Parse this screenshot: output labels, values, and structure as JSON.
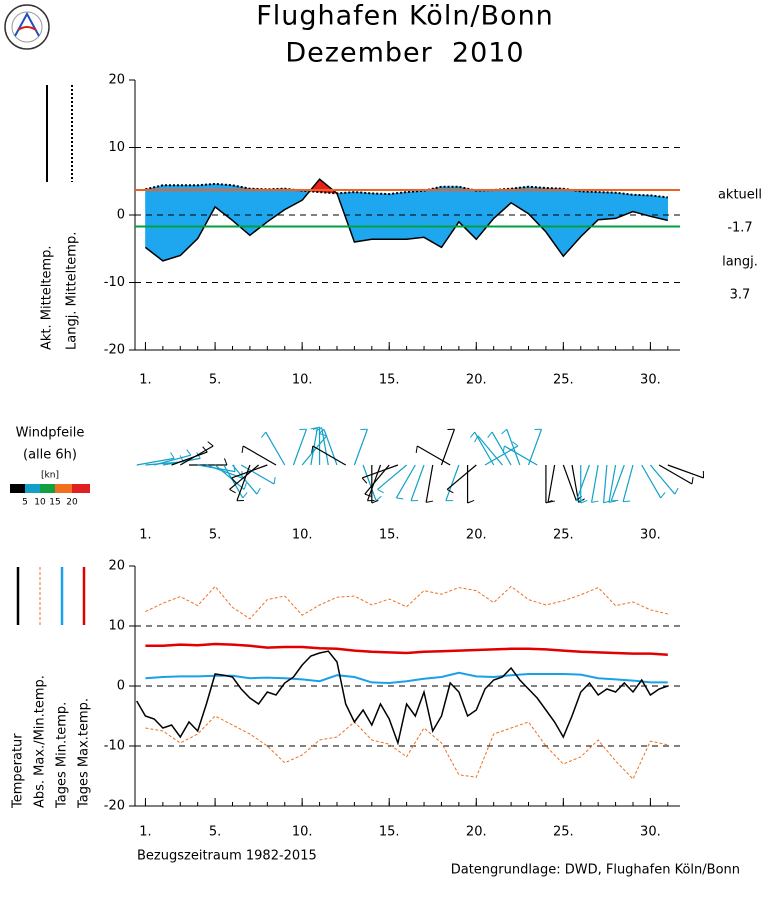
{
  "chart_data": [
    {
      "type": "line",
      "title": "Flughafen Köln/Bonn",
      "subtitle": "Dezember  2010",
      "x": [
        1,
        2,
        3,
        4,
        5,
        6,
        7,
        8,
        9,
        10,
        11,
        12,
        13,
        14,
        15,
        16,
        17,
        18,
        19,
        20,
        21,
        22,
        23,
        24,
        25,
        26,
        27,
        28,
        29,
        30,
        31
      ],
      "xlim": [
        0.4,
        31.7
      ],
      "xticks": [
        {
          "value": 1,
          "label": "1."
        },
        {
          "value": 5,
          "label": "5."
        },
        {
          "value": 10,
          "label": "10."
        },
        {
          "value": 15,
          "label": "15."
        },
        {
          "value": 20,
          "label": "20."
        },
        {
          "value": 25,
          "label": "25."
        },
        {
          "value": 30,
          "label": "30."
        }
      ],
      "ylim": [
        -20,
        20
      ],
      "yticks": [
        -20,
        -10,
        0,
        10,
        20
      ],
      "grid": "dashed",
      "series": [
        {
          "name": "Akt. Mitteltemp.",
          "color": "#000000",
          "values": [
            -4.8,
            -6.8,
            -6.0,
            -3.5,
            1.2,
            -0.8,
            -3.0,
            -1.0,
            0.8,
            2.2,
            5.3,
            3.2,
            -4.0,
            -3.6,
            -3.6,
            -3.6,
            -3.3,
            -4.8,
            -1.0,
            -3.6,
            -0.5,
            1.8,
            0.2,
            -2.5,
            -6.1,
            -3.2,
            -0.7,
            -0.5,
            0.5,
            -0.2,
            -0.8
          ]
        },
        {
          "name": "Langj. Mitteltemp.",
          "color": "#000000",
          "dotted": true,
          "values": [
            3.8,
            4.4,
            4.4,
            4.4,
            4.6,
            4.4,
            3.9,
            3.8,
            3.9,
            3.6,
            3.4,
            3.2,
            3.4,
            3.2,
            3.1,
            3.4,
            3.6,
            4.2,
            4.2,
            3.6,
            3.7,
            3.9,
            4.2,
            4.0,
            3.9,
            3.5,
            3.4,
            3.3,
            3.0,
            2.9,
            2.6
          ]
        }
      ],
      "fill_colors": {
        "below": "#1ea7ee",
        "above": "#e8201c"
      },
      "reference_lines": [
        {
          "name": "aktuell",
          "value": -1.7,
          "color": "#00a040"
        },
        {
          "name": "langj.",
          "value": 3.7,
          "color": "#f06020"
        }
      ]
    },
    {
      "type": "wind",
      "title": "Windpfeile",
      "subtitle": "(alle 6h)",
      "x": [
        0.5,
        1,
        1.5,
        2,
        2.5,
        3,
        3.5,
        4,
        4.5,
        5,
        5.5,
        6,
        6.5,
        7,
        7.5,
        8,
        8.5,
        9,
        9.5,
        10,
        10.5,
        11,
        11.5,
        12,
        12.5,
        13,
        13.5,
        14,
        14.5,
        15,
        15.5,
        16,
        16.5,
        17,
        17.5,
        18,
        18.5,
        19,
        19.5,
        20,
        20.5,
        21,
        21.5,
        22,
        22.5,
        23,
        23.5,
        24,
        24.5,
        25,
        25.5,
        26,
        26.5,
        27,
        27.5,
        28,
        28.5,
        29,
        29.5,
        30,
        30.5,
        31
      ],
      "direction": [
        80,
        85,
        75,
        80,
        70,
        60,
        90,
        100,
        110,
        130,
        150,
        140,
        120,
        200,
        230,
        250,
        300,
        330,
        20,
        40,
        10,
        0,
        350,
        340,
        300,
        20,
        160,
        180,
        200,
        220,
        250,
        230,
        210,
        200,
        190,
        20,
        300,
        200,
        180,
        230,
        60,
        330,
        320,
        330,
        340,
        20,
        300,
        180,
        190,
        160,
        170,
        180,
        200,
        190,
        185,
        190,
        200,
        195,
        150,
        140,
        120,
        110
      ],
      "speed": [
        8,
        9,
        8,
        7,
        4,
        3,
        4,
        6,
        8,
        9,
        9,
        8,
        6,
        4,
        3,
        3,
        4,
        5,
        7,
        9,
        9,
        8,
        9,
        8,
        4,
        8,
        7,
        4,
        3,
        3,
        4,
        7,
        8,
        9,
        4,
        3,
        4,
        8,
        4,
        3,
        6,
        9,
        9,
        8,
        9,
        8,
        7,
        3,
        4,
        3,
        4,
        7,
        8,
        8,
        9,
        8,
        8,
        7,
        8,
        6,
        4,
        3
      ],
      "xlim": [
        0.4,
        31.7
      ],
      "xticks": [
        {
          "value": 1,
          "label": "1."
        },
        {
          "value": 5,
          "label": "5."
        },
        {
          "value": 10,
          "label": "10."
        },
        {
          "value": 15,
          "label": "15."
        },
        {
          "value": 20,
          "label": "20."
        },
        {
          "value": 25,
          "label": "25."
        },
        {
          "value": 30,
          "label": "30."
        }
      ],
      "colorscale": {
        "label": "[kn]",
        "bounds": [
          5,
          10,
          15,
          20
        ],
        "colors": [
          "#000000",
          "#12a0c8",
          "#10a040",
          "#f07020",
          "#e02020"
        ]
      }
    },
    {
      "type": "line",
      "note": "Bezugszeitraum 1982-2015",
      "source": "Datengrundlage: DWD, Flughafen Köln/Bonn",
      "x": [
        1,
        2,
        3,
        4,
        5,
        6,
        7,
        8,
        9,
        10,
        11,
        12,
        13,
        14,
        15,
        16,
        17,
        18,
        19,
        20,
        21,
        22,
        23,
        24,
        25,
        26,
        27,
        28,
        29,
        30,
        31
      ],
      "xlim": [
        0.4,
        31.7
      ],
      "xticks": [
        {
          "value": 1,
          "label": "1."
        },
        {
          "value": 5,
          "label": "5."
        },
        {
          "value": 10,
          "label": "10."
        },
        {
          "value": 15,
          "label": "15."
        },
        {
          "value": 20,
          "label": "20."
        },
        {
          "value": 25,
          "label": "25."
        },
        {
          "value": 30,
          "label": "30."
        }
      ],
      "ylim": [
        -20,
        20
      ],
      "yticks": [
        -20,
        -10,
        0,
        10,
        20
      ],
      "grid": "dashed",
      "series": [
        {
          "name": "Temperatur",
          "color": "#000000",
          "x": [
            0.5,
            1,
            1.5,
            2,
            2.5,
            3,
            3.5,
            4,
            4.5,
            5,
            5.5,
            6,
            6.5,
            7,
            7.5,
            8,
            8.5,
            9,
            9.5,
            10,
            10.5,
            11,
            11.5,
            12,
            12.5,
            13,
            13.5,
            14,
            14.5,
            15,
            15.5,
            16,
            16.5,
            17,
            17.5,
            18,
            18.5,
            19,
            19.5,
            20,
            20.5,
            21,
            21.5,
            22,
            22.5,
            23,
            23.5,
            24,
            24.5,
            25,
            25.5,
            26,
            26.5,
            27,
            27.5,
            28,
            28.5,
            29,
            29.5,
            30,
            30.5,
            31
          ],
          "values": [
            -2.5,
            -5,
            -5.5,
            -7,
            -6.5,
            -8.5,
            -6,
            -7.5,
            -3,
            2,
            1.8,
            1.5,
            -0.5,
            -2,
            -3,
            -1,
            -1.5,
            0.5,
            1.5,
            3.5,
            5,
            5.5,
            5.8,
            4,
            -3,
            -6,
            -4,
            -6.5,
            -3,
            -5.5,
            -9.5,
            -3,
            -5,
            -1,
            -7.5,
            -5,
            0.5,
            -1,
            -5,
            -4,
            -0.5,
            1,
            1.5,
            3,
            1,
            -0.5,
            -2,
            -4,
            -6,
            -8.5,
            -5,
            -1,
            0.5,
            -1.5,
            -0.5,
            -1,
            0.5,
            -1,
            1,
            -1.5,
            -0.5,
            0
          ]
        },
        {
          "name": "Abs. Max./Min.temp.",
          "color": "#f07020",
          "dashed": true,
          "high": [
            12.4,
            13.8,
            14.9,
            13.4,
            16.6,
            13.1,
            11.2,
            14.4,
            15.0,
            11.8,
            13.5,
            14.8,
            15.0,
            13.5,
            14.5,
            13.2,
            15.9,
            15.3,
            16.4,
            15.9,
            13.9,
            16.6,
            14.4,
            13.5,
            14.2,
            15.2,
            16.4,
            13.4,
            14.0,
            12.7,
            12.0
          ],
          "low": [
            -7.0,
            -7.5,
            -9.5,
            -8.0,
            -5.0,
            -6.5,
            -8.0,
            -10.0,
            -12.8,
            -11.5,
            -9.0,
            -8.5,
            -6.0,
            -9.0,
            -9.7,
            -11.8,
            -7.0,
            -9.5,
            -14.8,
            -15.2,
            -8.0,
            -7.0,
            -6.0,
            -10.0,
            -13.0,
            -11.8,
            -9.0,
            -12.5,
            -15.5,
            -9.2,
            -9.8
          ]
        },
        {
          "name": "Tages Min.temp.",
          "color": "#1aa0e8",
          "values": [
            1.3,
            1.5,
            1.6,
            1.6,
            1.7,
            1.7,
            1.3,
            1.4,
            1.3,
            1.1,
            0.8,
            1.8,
            1.5,
            0.6,
            0.5,
            0.8,
            1.2,
            1.5,
            2.2,
            1.6,
            1.5,
            1.8,
            2.0,
            2.0,
            2.0,
            1.9,
            1.3,
            1.1,
            0.9,
            0.6,
            0.6
          ]
        },
        {
          "name": "Tages Max.temp.",
          "color": "#e00000",
          "values": [
            6.7,
            6.7,
            6.9,
            6.8,
            7.0,
            6.9,
            6.7,
            6.4,
            6.5,
            6.5,
            6.3,
            6.2,
            5.9,
            5.7,
            5.6,
            5.5,
            5.7,
            5.8,
            5.9,
            6.0,
            6.1,
            6.2,
            6.2,
            6.1,
            5.9,
            5.7,
            5.6,
            5.5,
            5.4,
            5.4,
            5.2
          ]
        }
      ]
    }
  ]
}
